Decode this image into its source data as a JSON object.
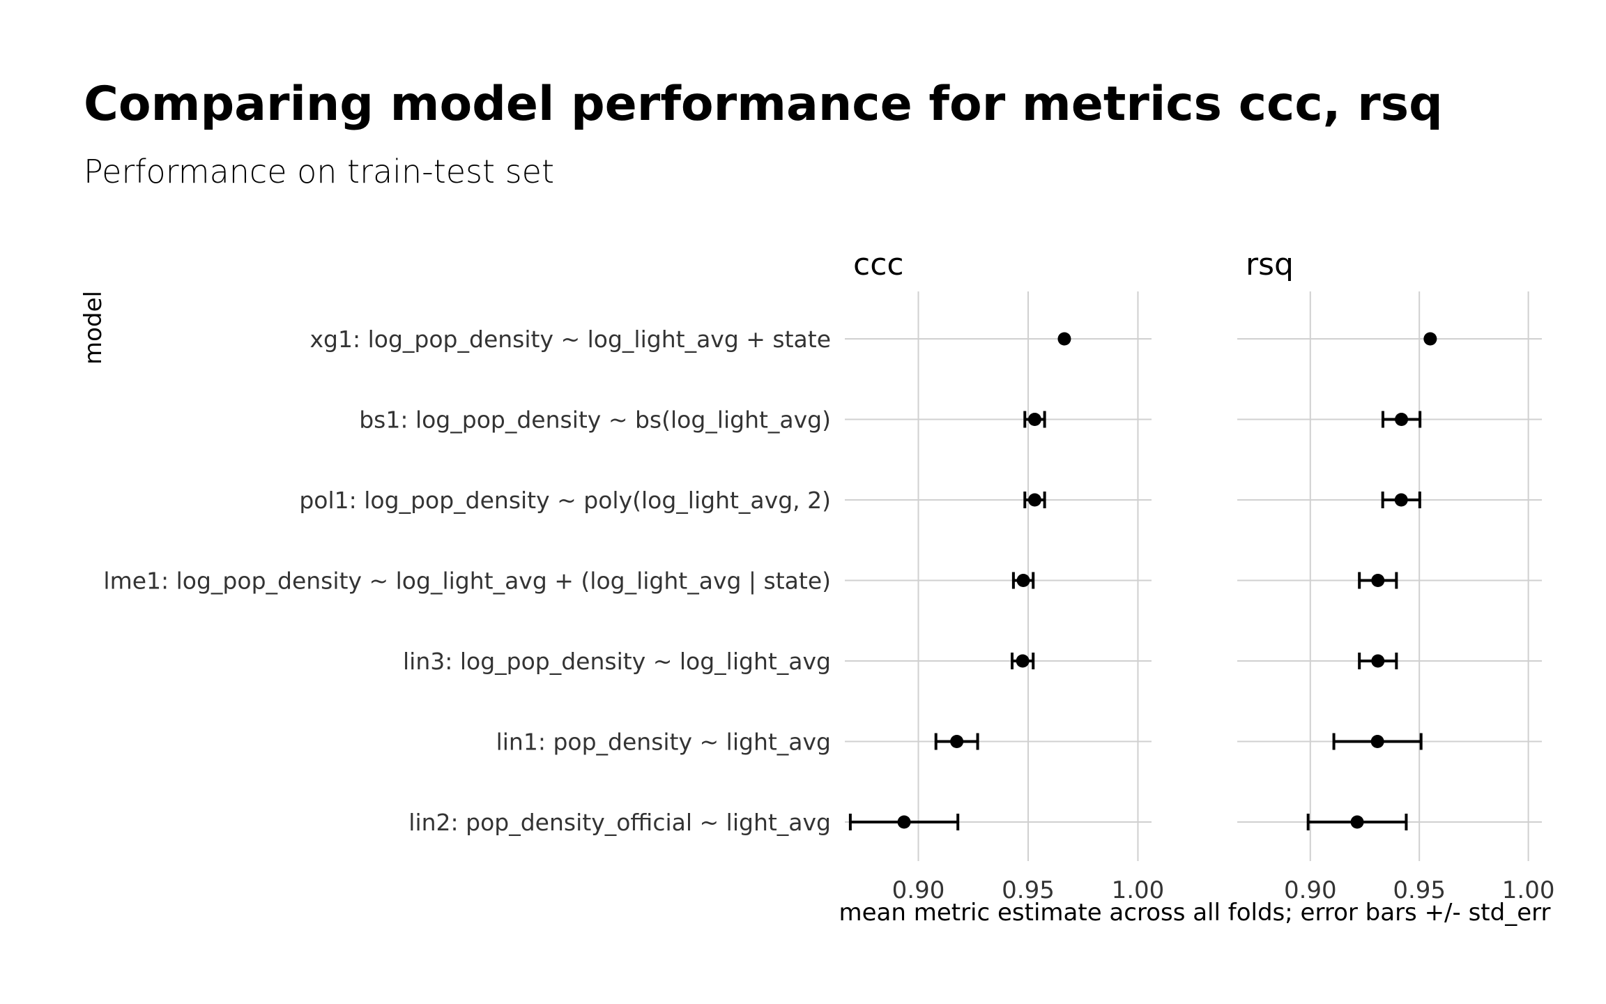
{
  "title": "Comparing model performance for metrics ccc, rsq",
  "subtitle": "Performance on train-test set",
  "chart_data": {
    "type": "scatter",
    "orientation": "horizontal",
    "ylabel": "model",
    "xlabel": "mean metric estimate across all folds; error bars +/- std_err",
    "x_ticks": [
      0.9,
      0.95,
      1.0
    ],
    "x_tick_labels": [
      "0.90",
      "0.95",
      "1.00"
    ],
    "xlim": [
      0.8665,
      1.0062
    ],
    "grid": true,
    "legend": "none",
    "models": [
      "xg1: log_pop_density ~ log_light_avg + state",
      "bs1: log_pop_density ~ bs(log_light_avg)",
      "pol1: log_pop_density ~ poly(log_light_avg, 2)",
      "lme1: log_pop_density ~ log_light_avg + (log_light_avg | state)",
      "lin3: log_pop_density ~ log_light_avg",
      "lin1: pop_density ~ light_avg",
      "lin2: pop_density_official ~ light_avg"
    ],
    "facets": [
      {
        "name": "ccc",
        "points": [
          {
            "model": "xg1: log_pop_density ~ log_light_avg + state",
            "mean": 0.9665,
            "std_err": 0
          },
          {
            "model": "bs1: log_pop_density ~ bs(log_light_avg)",
            "mean": 0.953,
            "std_err": 0.0045
          },
          {
            "model": "pol1: log_pop_density ~ poly(log_light_avg, 2)",
            "mean": 0.953,
            "std_err": 0.0045
          },
          {
            "model": "lme1: log_pop_density ~ log_light_avg + (log_light_avg | state)",
            "mean": 0.9478,
            "std_err": 0.0045
          },
          {
            "model": "lin3: log_pop_density ~ log_light_avg",
            "mean": 0.9475,
            "std_err": 0.0048
          },
          {
            "model": "lin1: pop_density ~ light_avg",
            "mean": 0.9175,
            "std_err": 0.0095
          },
          {
            "model": "lin2: pop_density_official ~ light_avg",
            "mean": 0.8935,
            "std_err": 0.0245
          }
        ]
      },
      {
        "name": "rsq",
        "points": [
          {
            "model": "xg1: log_pop_density ~ log_light_avg + state",
            "mean": 0.955,
            "std_err": 0
          },
          {
            "model": "bs1: log_pop_density ~ bs(log_light_avg)",
            "mean": 0.9418,
            "std_err": 0.0085
          },
          {
            "model": "pol1: log_pop_density ~ poly(log_light_avg, 2)",
            "mean": 0.9417,
            "std_err": 0.0085
          },
          {
            "model": "lme1: log_pop_density ~ log_light_avg + (log_light_avg | state)",
            "mean": 0.931,
            "std_err": 0.0085
          },
          {
            "model": "lin3: log_pop_density ~ log_light_avg",
            "mean": 0.931,
            "std_err": 0.0085
          },
          {
            "model": "lin1: pop_density ~ light_avg",
            "mean": 0.9308,
            "std_err": 0.02
          },
          {
            "model": "lin2: pop_density_official ~ light_avg",
            "mean": 0.9215,
            "std_err": 0.0225
          }
        ]
      }
    ]
  }
}
